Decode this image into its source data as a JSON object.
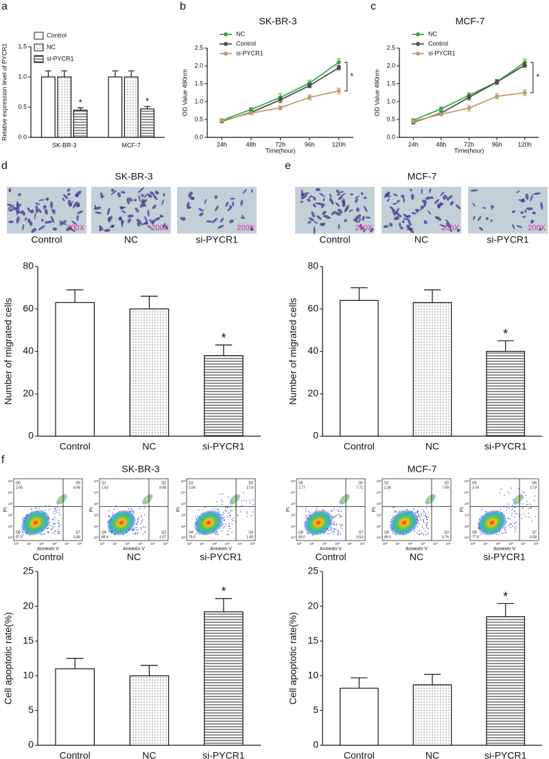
{
  "chart_data": [
    {
      "panel": "a",
      "type": "bar",
      "y_label": "Relative expression level of PYCR1",
      "categories": [
        "SK-BR-3",
        "MCF-7"
      ],
      "series": [
        {
          "name": "Control",
          "pattern": "none",
          "values": [
            1.0,
            1.0
          ],
          "errors": [
            0.1,
            0.1
          ]
        },
        {
          "name": "NC",
          "pattern": "dots",
          "values": [
            1.0,
            1.0
          ],
          "errors": [
            0.1,
            0.1
          ]
        },
        {
          "name": "si-PYCR1",
          "pattern": "hlines",
          "values": [
            0.45,
            0.47
          ],
          "errors": [
            0.04,
            0.04
          ],
          "significance": [
            "*",
            "*"
          ]
        }
      ],
      "ylim": [
        0,
        1.5
      ],
      "yticks": [
        {
          "value": 0,
          "label": "0.0"
        },
        0.5,
        {
          "value": 1,
          "label": "1.0"
        },
        1.5
      ],
      "legend": "top-left"
    },
    {
      "panel": "b",
      "type": "line",
      "title": "SK-BR-3",
      "x_label": "Time(hour)",
      "y_label": "OD Value 490nm",
      "categories": [
        "24h",
        "48h",
        "72h",
        "96h",
        "120h"
      ],
      "series": [
        {
          "name": "NC",
          "color": "#3aa845",
          "values": [
            0.48,
            0.78,
            1.12,
            1.52,
            2.1
          ],
          "errors": [
            0.04,
            0.05,
            0.1,
            0.08,
            0.1
          ]
        },
        {
          "name": "Control",
          "color": "#4d4d4d",
          "values": [
            0.45,
            0.7,
            1.05,
            1.45,
            1.95
          ],
          "errors": [
            0.04,
            0.04,
            0.08,
            0.06,
            0.06
          ]
        },
        {
          "name": "si-PYCR1",
          "color": "#c49a6c",
          "values": [
            0.47,
            0.68,
            0.83,
            1.12,
            1.3
          ],
          "errors": [
            0.04,
            0.04,
            0.05,
            0.07,
            0.08
          ]
        }
      ],
      "significance": "*",
      "ylim": [
        0,
        2.5
      ],
      "yticks": [
        {
          "value": 0,
          "label": "0.0"
        },
        0.5,
        {
          "value": 1,
          "label": "1.0"
        },
        1.5,
        {
          "value": 2,
          "label": "2.0"
        },
        2.5
      ],
      "legend": "top-left"
    },
    {
      "panel": "c",
      "type": "line",
      "title": "MCF-7",
      "x_label": "Time(hour)",
      "y_label": "OD Value 490nm",
      "categories": [
        "24h",
        "48h",
        "72h",
        "96h",
        "120h"
      ],
      "series": [
        {
          "name": "NC",
          "color": "#3aa845",
          "values": [
            0.48,
            0.8,
            1.18,
            1.55,
            2.1
          ],
          "errors": [
            0.04,
            0.05,
            0.07,
            0.07,
            0.09
          ]
        },
        {
          "name": "Control",
          "color": "#4d4d4d",
          "values": [
            0.42,
            0.68,
            1.12,
            1.55,
            2.02
          ],
          "errors": [
            0.04,
            0.04,
            0.07,
            0.06,
            0.06
          ]
        },
        {
          "name": "si-PYCR1",
          "color": "#c49a6c",
          "values": [
            0.45,
            0.65,
            0.82,
            1.15,
            1.25
          ],
          "errors": [
            0.04,
            0.04,
            0.08,
            0.07,
            0.08
          ]
        }
      ],
      "significance": "*",
      "ylim": [
        0,
        2.5
      ],
      "yticks": [
        {
          "value": 0,
          "label": "0.0"
        },
        0.5,
        {
          "value": 1,
          "label": "1.0"
        },
        1.5,
        {
          "value": 2,
          "label": "2.0"
        },
        2.5
      ],
      "legend": "top-left"
    },
    {
      "type": "bar",
      "y_label": "Number of migrated cells",
      "categories": [
        "Control",
        "NC",
        "si-PYCR1"
      ],
      "values": [
        63,
        60,
        38
      ],
      "errors": [
        6,
        6,
        5
      ],
      "patterns": [
        "none",
        "dots",
        "hlines"
      ],
      "significance": [
        null,
        null,
        "*"
      ],
      "ylim": [
        0,
        80
      ],
      "yticks": [
        0,
        20,
        40,
        60,
        80
      ]
    },
    {
      "type": "bar",
      "y_label": "Number of migrated cells",
      "categories": [
        "Control",
        "NC",
        "si-PYCR1"
      ],
      "values": [
        64,
        63,
        40
      ],
      "errors": [
        6,
        6,
        5
      ],
      "patterns": [
        "none",
        "dots",
        "hlines"
      ],
      "significance": [
        null,
        null,
        "*"
      ],
      "ylim": [
        0,
        80
      ],
      "yticks": [
        0,
        20,
        40,
        60,
        80
      ]
    },
    {
      "type": "bar",
      "y_label": "Cell apoptotic rate(%)",
      "categories": [
        "Control",
        "NC",
        "si-PYCR1"
      ],
      "values": [
        11,
        10,
        19.2
      ],
      "errors": [
        1.5,
        1.5,
        1.9
      ],
      "patterns": [
        "none",
        "dots",
        "hlines"
      ],
      "significance": [
        null,
        null,
        "*"
      ],
      "ylim": [
        0,
        25
      ],
      "yticks": [
        0,
        5,
        10,
        15,
        20,
        25
      ]
    },
    {
      "type": "bar",
      "y_label": "Cell apoptotic rate(%)",
      "categories": [
        "Control",
        "NC",
        "si-PYCR1"
      ],
      "values": [
        8.2,
        8.7,
        18.5
      ],
      "errors": [
        1.5,
        1.5,
        1.9
      ],
      "patterns": [
        "none",
        "dots",
        "hlines"
      ],
      "significance": [
        null,
        null,
        "*"
      ],
      "ylim": [
        0,
        25
      ],
      "yticks": [
        0,
        5,
        10,
        15,
        20,
        25
      ]
    }
  ],
  "micrographs": [
    {
      "panel": "d",
      "title": "SK-BR-3",
      "images": [
        {
          "label": "Control",
          "magnification": "200X"
        },
        {
          "label": "NC",
          "magnification": "200X"
        },
        {
          "label": "si-PYCR1",
          "magnification": "200X"
        }
      ]
    },
    {
      "panel": "e",
      "title": "MCF-7",
      "images": [
        {
          "label": "Control",
          "magnification": "200X"
        },
        {
          "label": "NC",
          "magnification": "200X"
        },
        {
          "label": "si-PYCR1",
          "magnification": "200X"
        }
      ]
    }
  ],
  "flow_cytometry": {
    "panel": "f",
    "axis_ticks": [
      "10⁰",
      "10¹",
      "10²",
      "10³",
      "10⁴",
      "10⁵"
    ],
    "groups": [
      {
        "title": "SK-BR-3",
        "plots": [
          {
            "label": "Control",
            "x_label": "Annexin V",
            "y_label": "PI",
            "quadrants": [
              {
                "name": "Q5",
                "value": "2.05"
              },
              {
                "name": "Q6",
                "value": "8.98"
              },
              {
                "name": "Q8",
                "value": "87.0"
              },
              {
                "name": "Q7",
                "value": "0.88"
              }
            ]
          },
          {
            "label": "NC",
            "x_label": "Annexin V",
            "y_label": "PI",
            "quadrants": [
              {
                "name": "Q1",
                "value": "1.53"
              },
              {
                "name": "Q2",
                "value": "8.98"
              },
              {
                "name": "Q4",
                "value": "88.4"
              },
              {
                "name": "Q3",
                "value": "1.07"
              }
            ]
          },
          {
            "label": "si-PYCR1",
            "x_label": "Annexin V",
            "y_label": "PI",
            "quadrants": [
              {
                "name": "Q1",
                "value": "1.05"
              },
              {
                "name": "Q2",
                "value": "17.8"
              },
              {
                "name": "Q4",
                "value": "79.5"
              },
              {
                "name": "Q3",
                "value": "1.60"
              }
            ]
          }
        ]
      },
      {
        "title": "MCF-7",
        "plots": [
          {
            "label": "Control",
            "x_label": "Annexin V",
            "y_label": "PI",
            "quadrants": [
              {
                "name": "Q5",
                "value": "1.77"
              },
              {
                "name": "Q6",
                "value": "7.71"
              },
              {
                "name": "Q8",
                "value": "90.0"
              },
              {
                "name": "Q7",
                "value": "0.54"
              }
            ]
          },
          {
            "label": "NC",
            "x_label": "Annexin V",
            "y_label": "PI",
            "quadrants": [
              {
                "name": "Q1",
                "value": "2.35"
              },
              {
                "name": "Q2",
                "value": "7.69"
              },
              {
                "name": "Q4",
                "value": "89.5"
              },
              {
                "name": "Q3",
                "value": "0.76"
              }
            ]
          },
          {
            "label": "si-PYCR1",
            "x_label": "Annexin V",
            "y_label": "PI",
            "quadrants": [
              {
                "name": "Q5",
                "value": "3.74"
              },
              {
                "name": "Q6",
                "value": "17.8"
              },
              {
                "name": "Q8",
                "value": "77.9"
              },
              {
                "name": "Q7",
                "value": "0.58"
              }
            ]
          }
        ]
      }
    ]
  }
}
